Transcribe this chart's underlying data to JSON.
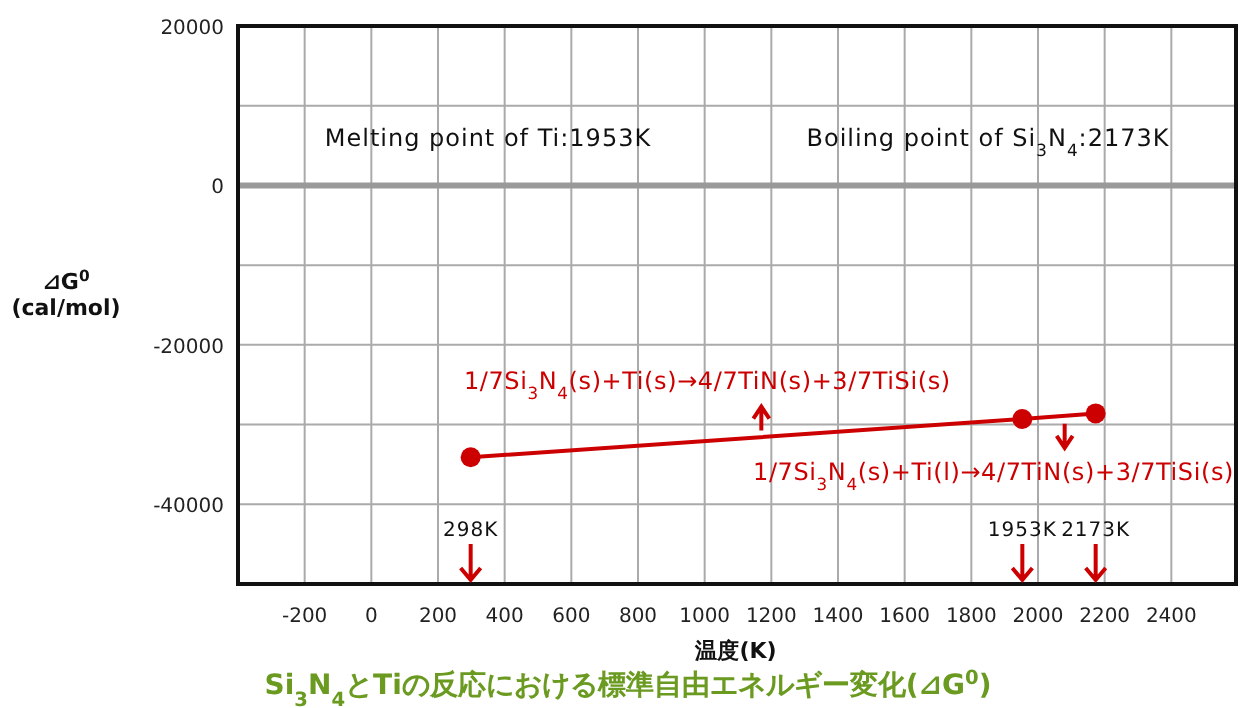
{
  "chart_data": {
    "type": "line",
    "title": "Si$_{3}$N$_{4}$とTiの反応における標準自由エネルギー変化(⊿G$^{0}$)",
    "xlabel": "温度(K)",
    "ylabel": "⊿G$^{0}$ (cal/mol)",
    "x": [
      298,
      1953,
      2173
    ],
    "series": [
      {
        "color": "#cc0000",
        "values": [
          -34100,
          -29300,
          -28600
        ]
      }
    ],
    "marker": "circle",
    "line_style": "solid",
    "grid": true,
    "xlim": [
      -400,
      2600
    ],
    "xticks": [
      -200,
      0,
      200,
      400,
      600,
      800,
      1000,
      1200,
      1400,
      1600,
      1800,
      2000,
      2200,
      2400
    ],
    "ylim": [
      -50000,
      20000
    ],
    "yticks": [
      20000,
      {
        "value": 10000,
        "label": null
      },
      0,
      {
        "value": -10000,
        "label": null
      },
      -20000,
      {
        "value": -30000,
        "label": null
      },
      -40000
    ],
    "ref_lines": [
      {
        "axis": "y",
        "value": 0,
        "color": "#999999"
      }
    ],
    "annotations": [
      "Melting point of Ti:1953K",
      "Boiling point of Si$_{3}$N$_{4}$:2173K",
      {
        "text": "1/7Si$_{3}$N$_{4}$(s)+Ti(s)→4/7TiN(s)+3/7TiSi(s)",
        "x": 1170,
        "y": -31500
      },
      {
        "text": "1/7Si$_{3}$N$_{4}$(s)+Ti(l)→4/7TiN(s)+3/7TiSi(s)",
        "x": 2080,
        "y": -28900
      },
      "298K",
      "1953K",
      "2173K"
    ]
  }
}
